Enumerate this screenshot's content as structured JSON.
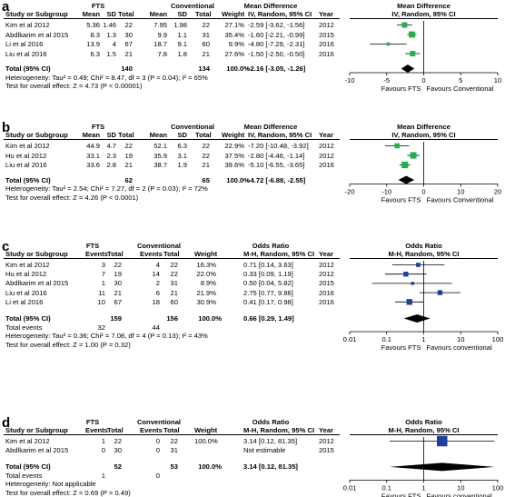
{
  "chart_data": [
    {
      "type": "forest",
      "panel": "a",
      "groups": [
        "FTS",
        "Conventional"
      ],
      "columns": [
        "Study or Subgroup",
        "Mean",
        "SD",
        "Total",
        "Mean",
        "SD",
        "Total",
        "Weight",
        "IV, Random, 95% CI",
        "Year"
      ],
      "effect_header": "Mean Difference",
      "plot_title": "Mean Difference",
      "plot_subtitle": "IV, Random, 95% CI",
      "studies": [
        {
          "cells": [
            "Kim et al 2012",
            "5.36",
            "1.46",
            "22",
            "7.95",
            "1.98",
            "22",
            "27.1%",
            "-2.59 [-3.62, -1.56]",
            "2012"
          ],
          "est": -2.59,
          "lo": -3.62,
          "hi": -1.56,
          "weight": 27.1
        },
        {
          "cells": [
            "Abdlkarim et al 2015",
            "8.3",
            "1.3",
            "30",
            "9.9",
            "1.1",
            "31",
            "35.4%",
            "-1.60 [-2.21, -0.99]",
            "2015"
          ],
          "est": -1.6,
          "lo": -2.21,
          "hi": -0.99,
          "weight": 35.4
        },
        {
          "cells": [
            "Li et al 2016",
            "13.9",
            "4",
            "67",
            "18.7",
            "9.1",
            "60",
            "9.9%",
            "-4.80 [-7.29, -2.31]",
            "2016"
          ],
          "est": -4.8,
          "lo": -7.29,
          "hi": -2.31,
          "weight": 9.9
        },
        {
          "cells": [
            "Liu et al 2016",
            "6.3",
            "1.5",
            "21",
            "7.8",
            "1.8",
            "21",
            "27.6%",
            "-1.50 [-2.50, -0.50]",
            "2016"
          ],
          "est": -1.5,
          "lo": -2.5,
          "hi": -0.5,
          "weight": 27.6
        }
      ],
      "total": {
        "label": "Total (95% CI)",
        "n1": "140",
        "n2": "134",
        "weight": "100.0%",
        "ci": "-2.16 [-3.05, -1.26]",
        "est": -2.16,
        "lo": -3.05,
        "hi": -1.26
      },
      "total_events": null,
      "heterogeneity": "Heterogeneity: Tau² = 0.49; Chi² = 8.47, df = 3 (P = 0.04); I² = 65%",
      "overall_effect": "Test for overall effect: Z = 4.73 (P < 0.00001)",
      "axis": {
        "scale": "linear",
        "min": -10,
        "max": 10,
        "ticks": [
          "-10",
          "-5",
          "0",
          "5",
          "10"
        ],
        "tick_values": [
          -10,
          -5,
          0,
          5,
          10
        ]
      },
      "favours_left": "Favours FTS",
      "favours_right": "Favours Conventional",
      "marker_color": "#22b14c"
    },
    {
      "type": "forest",
      "panel": "b",
      "groups": [
        "FTS",
        "Conventional"
      ],
      "columns": [
        "Study or Subgroup",
        "Mean",
        "SD",
        "Total",
        "Mean",
        "SD",
        "Total",
        "Weight",
        "IV, Random, 95% CI",
        "Year"
      ],
      "effect_header": "Mean Difference",
      "plot_title": "Mean Difference",
      "plot_subtitle": "IV, Random, 95% CI",
      "studies": [
        {
          "cells": [
            "Kim et al 2012",
            "44.9",
            "4.7",
            "22",
            "52.1",
            "6.3",
            "22",
            "22.9%",
            "-7.20 [-10.48, -3.92]",
            "2012"
          ],
          "est": -7.2,
          "lo": -10.48,
          "hi": -3.92,
          "weight": 22.9
        },
        {
          "cells": [
            "Hu et al 2012",
            "33.1",
            "2.3",
            "19",
            "35.9",
            "3.1",
            "22",
            "37.5%",
            "-2.80 [-4.46, -1.14]",
            "2012"
          ],
          "est": -2.8,
          "lo": -4.46,
          "hi": -1.14,
          "weight": 37.5
        },
        {
          "cells": [
            "Liu et al 2016",
            "33.6",
            "2.8",
            "21",
            "38.7",
            "1.9",
            "21",
            "39.6%",
            "-5.10 [-6.55, -3.65]",
            "2016"
          ],
          "est": -5.1,
          "lo": -6.55,
          "hi": -3.65,
          "weight": 39.6
        }
      ],
      "total": {
        "label": "Total (95% CI)",
        "n1": "62",
        "n2": "65",
        "weight": "100.0%",
        "ci": "-4.72 [-6.88, -2.55]",
        "est": -4.72,
        "lo": -6.88,
        "hi": -2.55
      },
      "total_events": null,
      "heterogeneity": "Heterogeneity: Tau² = 2.54; Chi² = 7.27, df = 2 (P = 0.03); I² = 72%",
      "overall_effect": "Test for overall effect: Z = 4.26 (P < 0.0001)",
      "axis": {
        "scale": "linear",
        "min": -20,
        "max": 20,
        "ticks": [
          "-20",
          "-10",
          "0",
          "10",
          "20"
        ],
        "tick_values": [
          -20,
          -10,
          0,
          10,
          20
        ]
      },
      "favours_left": "Favours FTS",
      "favours_right": "Favours Conventional",
      "marker_color": "#22b14c"
    },
    {
      "type": "forest",
      "panel": "c",
      "groups": [
        "FTS",
        "Conventional"
      ],
      "columns": [
        "Study or Subgroup",
        "Events",
        "Total",
        "Events",
        "Total",
        "Weight",
        "M-H, Random, 95% CI",
        "Year"
      ],
      "effect_header": "Odds Ratio",
      "plot_title": "Odds Ratio",
      "plot_subtitle": "M-H, Random, 95% CI",
      "studies": [
        {
          "cells": [
            "Kim et al 2012",
            "3",
            "22",
            "4",
            "22",
            "16.3%",
            "0.71 [0.14, 3.63]",
            "2012"
          ],
          "est": 0.71,
          "lo": 0.14,
          "hi": 3.63,
          "weight": 16.3
        },
        {
          "cells": [
            "Hu et al 2012",
            "7",
            "19",
            "14",
            "22",
            "22.0%",
            "0.33 [0.09, 1.19]",
            "2012"
          ],
          "est": 0.33,
          "lo": 0.09,
          "hi": 1.19,
          "weight": 22.0
        },
        {
          "cells": [
            "Abdlkarim et al 2015",
            "1",
            "30",
            "2",
            "31",
            "8.9%",
            "0.50 [0.04, 5.82]",
            "2015"
          ],
          "est": 0.5,
          "lo": 0.04,
          "hi": 5.82,
          "weight": 8.9
        },
        {
          "cells": [
            "Liu et al 2016",
            "11",
            "21",
            "6",
            "21",
            "21.9%",
            "2.75 [0.77, 9.86]",
            "2016"
          ],
          "est": 2.75,
          "lo": 0.77,
          "hi": 9.86,
          "weight": 21.9
        },
        {
          "cells": [
            "Li et al 2016",
            "10",
            "67",
            "18",
            "60",
            "30.9%",
            "0.41 [0.17, 0.98]",
            "2016"
          ],
          "est": 0.41,
          "lo": 0.17,
          "hi": 0.98,
          "weight": 30.9
        }
      ],
      "total": {
        "label": "Total (95% CI)",
        "n1": "159",
        "n2": "156",
        "weight": "100.0%",
        "ci": "0.66 [0.29, 1.49]",
        "est": 0.66,
        "lo": 0.29,
        "hi": 1.49
      },
      "total_events": {
        "label": "Total events",
        "e1": "32",
        "e2": "44"
      },
      "heterogeneity": "Heterogeneity: Tau² = 0.36; Chi² = 7.08, df = 4 (P = 0.13); I² = 43%",
      "overall_effect": "Test for overall effect: Z = 1.00 (P = 0.32)",
      "axis": {
        "scale": "log",
        "min": 0.01,
        "max": 100,
        "ticks": [
          "0.01",
          "0.1",
          "1",
          "10",
          "100"
        ],
        "tick_values": [
          0.01,
          0.1,
          1,
          10,
          100
        ]
      },
      "favours_left": "Favours FTS",
      "favours_right": "Favours conventional",
      "marker_color": "#1f3f9f"
    },
    {
      "type": "forest",
      "panel": "d",
      "groups": [
        "FTS",
        "Conventional"
      ],
      "columns": [
        "Study or Subgroup",
        "Events",
        "Total",
        "Events",
        "Total",
        "Weight",
        "M-H, Random, 95% CI",
        "Year"
      ],
      "effect_header": "Odds Ratio",
      "plot_title": "Odds Ratio",
      "plot_subtitle": "M-H, Random, 95% CI",
      "studies": [
        {
          "cells": [
            "Kim et al 2012",
            "1",
            "22",
            "0",
            "22",
            "100.0%",
            "3.14 [0.12, 81.35]",
            "2012"
          ],
          "est": 3.14,
          "lo": 0.12,
          "hi": 81.35,
          "weight": 100.0
        },
        {
          "cells": [
            "Abdlkarim et al 2015",
            "0",
            "30",
            "0",
            "31",
            "",
            "Not estimable",
            "2015"
          ],
          "est": null,
          "lo": null,
          "hi": null,
          "weight": null
        }
      ],
      "total": {
        "label": "Total (95% CI)",
        "n1": "52",
        "n2": "53",
        "weight": "100.0%",
        "ci": "3.14 [0.12, 81.35]",
        "est": 3.14,
        "lo": 0.12,
        "hi": 81.35
      },
      "total_events": {
        "label": "Total events",
        "e1": "1",
        "e2": "0"
      },
      "heterogeneity": "Heterogeneity: Not applicable",
      "overall_effect": "Test for overall effect: Z = 0.69 (P = 0.49)",
      "axis": {
        "scale": "log",
        "min": 0.01,
        "max": 100,
        "ticks": [
          "0.01",
          "0.1",
          "1",
          "10",
          "100"
        ],
        "tick_values": [
          0.01,
          0.1,
          1,
          10,
          100
        ]
      },
      "favours_left": "Favours FTS",
      "favours_right": "Favours conventional",
      "marker_color": "#1f3f9f"
    }
  ]
}
